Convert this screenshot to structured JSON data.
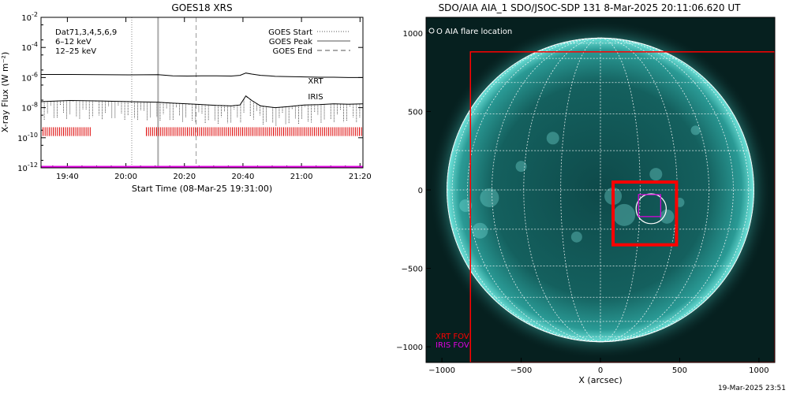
{
  "chart_data": [
    {
      "type": "line",
      "title": "GOES18 XRS",
      "xlabel": "Start Time (08-Mar-25 19:31:00)",
      "ylabel": "X-ray Flux (W m⁻²)",
      "log_y": true,
      "ylim": [
        1e-12,
        0.01
      ],
      "xlim_minutes": [
        0,
        110
      ],
      "x_ticks": [
        {
          "minute": 9,
          "label": "19:40"
        },
        {
          "minute": 29,
          "label": "20:00"
        },
        {
          "minute": 49,
          "label": "20:20"
        },
        {
          "minute": 69,
          "label": "20:40"
        },
        {
          "minute": 89,
          "label": "21:00"
        },
        {
          "minute": 109,
          "label": "21:20"
        }
      ],
      "y_ticks": [
        {
          "value": 0.01,
          "label_base": "10",
          "label_exp": "-2"
        },
        {
          "value": 0.0001,
          "label_base": "10",
          "label_exp": "-4"
        },
        {
          "value": 1e-06,
          "label_base": "10",
          "label_exp": "-6"
        },
        {
          "value": 1e-08,
          "label_base": "10",
          "label_exp": "-8"
        },
        {
          "value": 1e-10,
          "label_base": "10",
          "label_exp": "-10"
        },
        {
          "value": 1e-12,
          "label_base": "10",
          "label_exp": "-12"
        }
      ],
      "legend_left": [
        "Dat71,3,4,5,6,9",
        "6–12 keV",
        "12–25 keV"
      ],
      "legend_left_colors": [
        "#000000",
        "#e000e0",
        "#00d000"
      ],
      "legend_right": [
        "GOES Start",
        "GOES Peak",
        "GOES End"
      ],
      "annotations": [
        {
          "text": "XRT",
          "color": "#dd0000"
        },
        {
          "text": "IRIS",
          "color": "#e000e0"
        }
      ],
      "markers": {
        "goes_start_minute": 31,
        "goes_peak_minute": 40,
        "goes_end_minute": 53
      },
      "series": [
        {
          "name": "GOES long channel (upper)",
          "color": "#000000",
          "x": [
            0,
            10,
            20,
            30,
            40,
            45,
            50,
            55,
            60,
            65,
            68,
            70,
            72,
            75,
            78,
            80,
            85,
            90,
            95,
            100,
            105,
            110
          ],
          "y": [
            1.6e-06,
            1.6e-06,
            1.55e-06,
            1.5e-06,
            1.55e-06,
            1.3e-06,
            1.25e-06,
            1.3e-06,
            1.3e-06,
            1.25e-06,
            1.4e-06,
            2e-06,
            1.7e-06,
            1.4e-06,
            1.3e-06,
            1.2e-06,
            1.15e-06,
            1.1e-06,
            1.05e-06,
            1.05e-06,
            1e-06,
            1e-06
          ]
        },
        {
          "name": "GOES short channel (lower)",
          "color": "#000000",
          "x": [
            0,
            10,
            20,
            30,
            40,
            45,
            50,
            55,
            60,
            65,
            68,
            70,
            72,
            75,
            78,
            80,
            85,
            90,
            95,
            100,
            105,
            110
          ],
          "y": [
            2.5e-08,
            3e-08,
            2.8e-08,
            2.5e-08,
            2.3e-08,
            2e-08,
            1.8e-08,
            1.6e-08,
            1.4e-08,
            1.3e-08,
            1.5e-08,
            6e-08,
            3e-08,
            1.3e-08,
            1.1e-08,
            1e-08,
            1.2e-08,
            1.5e-08,
            1.6e-08,
            1.8e-08,
            1.7e-08,
            1.8e-08
          ]
        },
        {
          "name": "IRIS coverage",
          "color": "#e000e0",
          "x": [
            0,
            110
          ],
          "y": [
            1.2e-12,
            1.2e-12
          ]
        }
      ],
      "xrt_coverage_minutes": [
        [
          0,
          17
        ],
        [
          36,
          110
        ]
      ]
    },
    {
      "type": "heatmap",
      "title": "SDO/AIA AIA_1 SDO/JSOC-SDP 131  8-Mar-2025 20:11:06.620 UT",
      "xlabel": "X (arcsec)",
      "ylabel": "",
      "xlim": [
        -1100,
        1100
      ],
      "ylim": [
        -1100,
        1100
      ],
      "x_ticks": [
        -1000,
        -500,
        0,
        500,
        1000
      ],
      "y_ticks": [
        -1000,
        -500,
        0,
        500,
        1000
      ],
      "legend": "O AIA flare location",
      "fov_labels": [
        {
          "text": "XRT FOV",
          "color": "#ff0000"
        },
        {
          "text": "IRIS FOV",
          "color": "#e000e0"
        }
      ],
      "solar_radius_arcsec": 968,
      "xrt_fov_large": {
        "x0": -820,
        "x1": 1100,
        "y0": -1100,
        "y1": 880
      },
      "xrt_fov_small": {
        "x0": 80,
        "x1": 480,
        "y0": -350,
        "y1": 50
      },
      "iris_fov": {
        "x0": 240,
        "x1": 380,
        "y0": -170,
        "y1": -30
      },
      "flare_circle": {
        "x": 320,
        "y": -120,
        "r": 95
      }
    }
  ],
  "footer": {
    "timestamp": "19-Mar-2025 23:51"
  }
}
